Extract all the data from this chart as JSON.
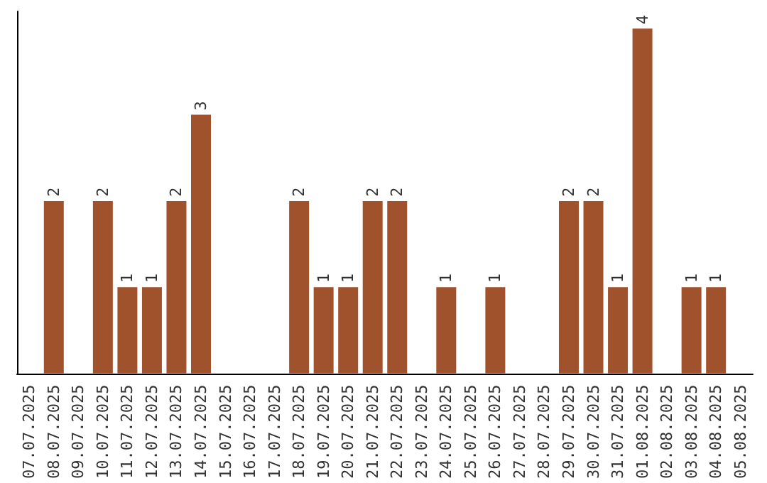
{
  "chart_data": {
    "type": "bar",
    "categories": [
      "07.07.2025",
      "08.07.2025",
      "09.07.2025",
      "10.07.2025",
      "11.07.2025",
      "12.07.2025",
      "13.07.2025",
      "14.07.2025",
      "15.07.2025",
      "16.07.2025",
      "17.07.2025",
      "18.07.2025",
      "19.07.2025",
      "20.07.2025",
      "21.07.2025",
      "22.07.2025",
      "23.07.2025",
      "24.07.2025",
      "25.07.2025",
      "26.07.2025",
      "27.07.2025",
      "28.07.2025",
      "29.07.2025",
      "30.07.2025",
      "31.07.2025",
      "01.08.2025",
      "02.08.2025",
      "03.08.2025",
      "04.08.2025",
      "05.08.2025"
    ],
    "values": [
      0,
      2,
      0,
      2,
      1,
      1,
      2,
      3,
      0,
      0,
      0,
      2,
      1,
      1,
      2,
      2,
      0,
      1,
      0,
      1,
      0,
      0,
      2,
      2,
      1,
      4,
      0,
      1,
      1,
      0
    ],
    "value_labels": [
      null,
      "2",
      null,
      "2",
      "1",
      "1",
      "2",
      "3",
      null,
      null,
      null,
      "2",
      "1",
      "1",
      "2",
      "2",
      null,
      "1",
      null,
      "1",
      null,
      null,
      "2",
      "2",
      "1",
      "4",
      null,
      "1",
      "1",
      null
    ],
    "color": "#a0522d",
    "ylim": [
      0,
      4.2
    ],
    "tick_labels": "x"
  }
}
